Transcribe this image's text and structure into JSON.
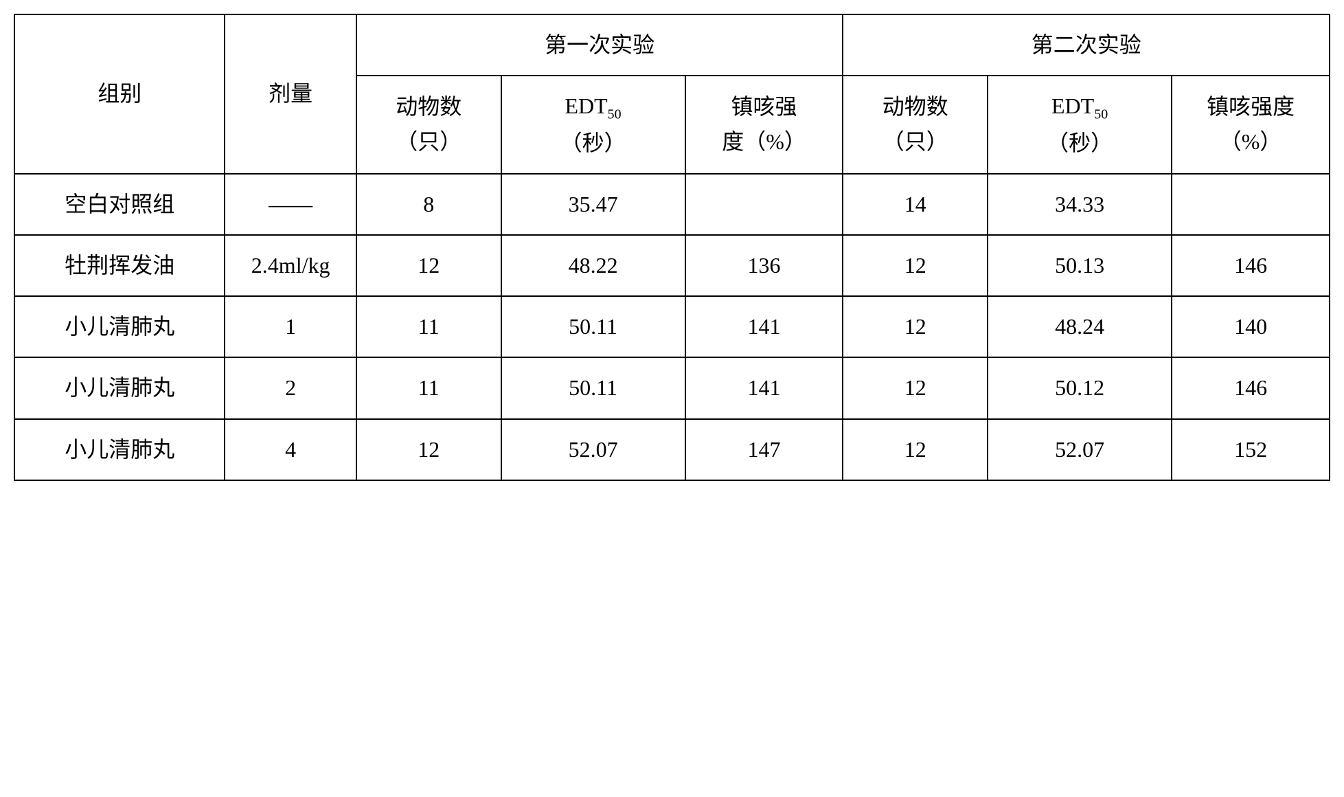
{
  "table": {
    "type": "table",
    "background_color": "#ffffff",
    "border_color": "#000000",
    "border_width": 2,
    "font_family": "SimSun",
    "header_fontsize": 32,
    "cell_fontsize": 32,
    "text_color": "#000000",
    "column_widths_percent": [
      16,
      10,
      11,
      14,
      12,
      11,
      14,
      12
    ],
    "headers": {
      "group": "组别",
      "dose": "剂量",
      "exp1": "第一次实验",
      "exp2": "第二次实验",
      "animal_count": "动物数",
      "animal_unit": "（只）",
      "edt_label": "EDT",
      "edt_sub": "50",
      "edt_unit": "（秒）",
      "cough_strength": "镇咳强",
      "cough_unit": "度（%）",
      "cough_strength_full": "镇咳强度",
      "cough_unit_full": "（%）"
    },
    "rows": [
      {
        "group": "空白对照组",
        "dose": "——",
        "exp1_n": "8",
        "exp1_edt": "35.47",
        "exp1_cough": "",
        "exp2_n": "14",
        "exp2_edt": "34.33",
        "exp2_cough": ""
      },
      {
        "group": "牡荆挥发油",
        "dose": "2.4ml/kg",
        "exp1_n": "12",
        "exp1_edt": "48.22",
        "exp1_cough": "136",
        "exp2_n": "12",
        "exp2_edt": "50.13",
        "exp2_cough": "146"
      },
      {
        "group": "小儿清肺丸",
        "dose": "1",
        "exp1_n": "11",
        "exp1_edt": "50.11",
        "exp1_cough": "141",
        "exp2_n": "12",
        "exp2_edt": "48.24",
        "exp2_cough": "140"
      },
      {
        "group": "小儿清肺丸",
        "dose": "2",
        "exp1_n": "11",
        "exp1_edt": "50.11",
        "exp1_cough": "141",
        "exp2_n": "12",
        "exp2_edt": "50.12",
        "exp2_cough": "146"
      },
      {
        "group": "小儿清肺丸",
        "dose": "4",
        "exp1_n": "12",
        "exp1_edt": "52.07",
        "exp1_cough": "147",
        "exp2_n": "12",
        "exp2_edt": "52.07",
        "exp2_cough": "152"
      }
    ]
  }
}
